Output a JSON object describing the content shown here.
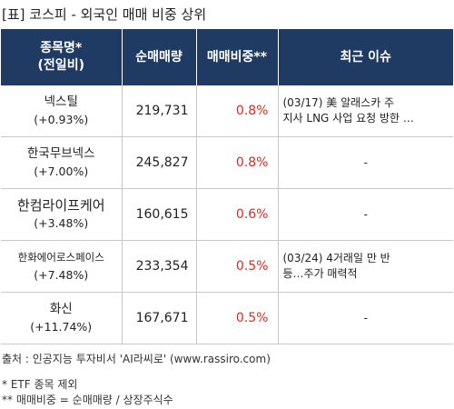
{
  "title": "[표] 코스피 - 외국인 매매 비중 상위",
  "headers": {
    "name_line1": "종목명*",
    "name_line2": "(전일비)",
    "volume": "순매매량",
    "ratio": "매매비중**",
    "issue": "최근 이슈"
  },
  "rows": [
    {
      "name": "넥스틸",
      "change": "(+0.93%)",
      "volume": "219,731",
      "ratio": "0.8%",
      "issue_line1": "(03/17) 美 알래스카 주",
      "issue_line2": "지사 LNG 사업 요청 방한 …"
    },
    {
      "name": "한국무브넥스",
      "change": "(+7.00%)",
      "volume": "245,827",
      "ratio": "0.8%",
      "issue_line1": "-",
      "issue_line2": ""
    },
    {
      "name": "한컴라이프케어",
      "change": "(+3.48%)",
      "volume": "160,615",
      "ratio": "0.6%",
      "issue_line1": "-",
      "issue_line2": ""
    },
    {
      "name": "한화에어로스페이스",
      "change": "(+7.48%)",
      "volume": "233,354",
      "ratio": "0.5%",
      "issue_line1": "(03/24) 4거래일 만 반",
      "issue_line2": "등…주가 매력적"
    },
    {
      "name": "화신",
      "change": "(+11.74%)",
      "volume": "167,671",
      "ratio": "0.5%",
      "issue_line1": "-",
      "issue_line2": ""
    }
  ],
  "source": "출처 : 인공지능 투자비서 'AI라씨로' (www.rassiro.com)",
  "note1": "* ETF 종목 제외",
  "note2": "** 매매비중 = 순매매량 / 상장주식수",
  "colors": {
    "header_bg": "#1f3b63",
    "ratio_text": "#e0281f"
  }
}
